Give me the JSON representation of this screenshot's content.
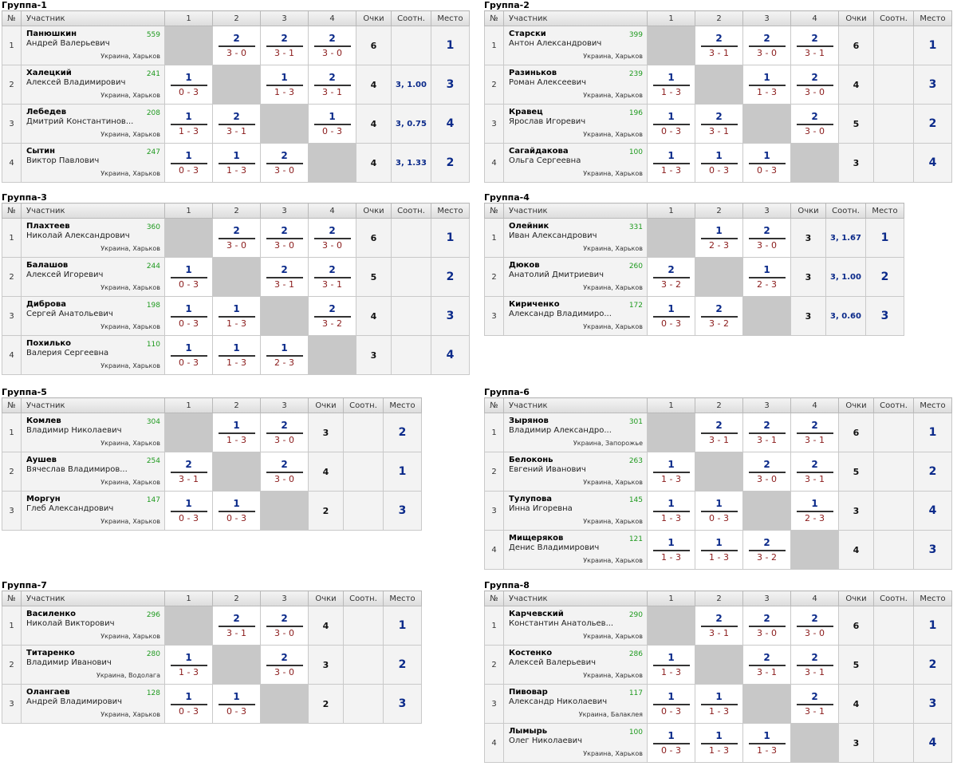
{
  "headers": {
    "num": "№",
    "name": "Участник",
    "points": "Очки",
    "ratio": "Соотн.",
    "place": "Место"
  },
  "groups": [
    {
      "title": "Группа-1",
      "cols": [
        "1",
        "2",
        "3",
        "4"
      ],
      "players": [
        {
          "num": "1",
          "surname": "Панюшкин",
          "given": "Андрей Валерьевич",
          "rating": "559",
          "location": "Украина, Харьков",
          "results": [
            null,
            {
              "mp": "2",
              "sc": "3 - 0"
            },
            {
              "mp": "2",
              "sc": "3 - 1"
            },
            {
              "mp": "2",
              "sc": "3 - 0"
            }
          ],
          "points": "6",
          "ratio": "",
          "place": "1"
        },
        {
          "num": "2",
          "surname": "Халецкий",
          "given": "Алексей Владимирович",
          "rating": "241",
          "location": "Украина, Харьков",
          "results": [
            {
              "mp": "1",
              "sc": "0 - 3"
            },
            null,
            {
              "mp": "1",
              "sc": "1 - 3"
            },
            {
              "mp": "2",
              "sc": "3 - 1"
            }
          ],
          "points": "4",
          "ratio": "3, 1.00",
          "place": "3"
        },
        {
          "num": "3",
          "surname": "Лебедев",
          "given": "Дмитрий Константинов...",
          "rating": "208",
          "location": "Украина, Харьков",
          "results": [
            {
              "mp": "1",
              "sc": "1 - 3"
            },
            {
              "mp": "2",
              "sc": "3 - 1"
            },
            null,
            {
              "mp": "1",
              "sc": "0 - 3"
            }
          ],
          "points": "4",
          "ratio": "3, 0.75",
          "place": "4"
        },
        {
          "num": "4",
          "surname": "Сытин",
          "given": "Виктор Павлович",
          "rating": "247",
          "location": "Украина, Харьков",
          "results": [
            {
              "mp": "1",
              "sc": "0 - 3"
            },
            {
              "mp": "1",
              "sc": "1 - 3"
            },
            {
              "mp": "2",
              "sc": "3 - 0"
            },
            null
          ],
          "points": "4",
          "ratio": "3, 1.33",
          "place": "2"
        }
      ]
    },
    {
      "title": "Группа-2",
      "cols": [
        "1",
        "2",
        "3",
        "4"
      ],
      "players": [
        {
          "num": "1",
          "surname": "Старски",
          "given": "Антон Александрович",
          "rating": "399",
          "location": "Украина, Харьков",
          "results": [
            null,
            {
              "mp": "2",
              "sc": "3 - 1"
            },
            {
              "mp": "2",
              "sc": "3 - 0"
            },
            {
              "mp": "2",
              "sc": "3 - 1"
            }
          ],
          "points": "6",
          "ratio": "",
          "place": "1"
        },
        {
          "num": "2",
          "surname": "Разиньков",
          "given": "Роман Алексеевич",
          "rating": "239",
          "location": "Украина, Харьков",
          "results": [
            {
              "mp": "1",
              "sc": "1 - 3"
            },
            null,
            {
              "mp": "1",
              "sc": "1 - 3"
            },
            {
              "mp": "2",
              "sc": "3 - 0"
            }
          ],
          "points": "4",
          "ratio": "",
          "place": "3"
        },
        {
          "num": "3",
          "surname": "Кравец",
          "given": "Ярослав Игоревич",
          "rating": "196",
          "location": "Украина, Харьков",
          "results": [
            {
              "mp": "1",
              "sc": "0 - 3"
            },
            {
              "mp": "2",
              "sc": "3 - 1"
            },
            null,
            {
              "mp": "2",
              "sc": "3 - 0"
            }
          ],
          "points": "5",
          "ratio": "",
          "place": "2"
        },
        {
          "num": "4",
          "surname": "Сагайдакова",
          "given": "Ольга Сергеевна",
          "rating": "100",
          "location": "Украина, Харьков",
          "results": [
            {
              "mp": "1",
              "sc": "1 - 3"
            },
            {
              "mp": "1",
              "sc": "0 - 3"
            },
            {
              "mp": "1",
              "sc": "0 - 3"
            },
            null
          ],
          "points": "3",
          "ratio": "",
          "place": "4"
        }
      ]
    },
    {
      "title": "Группа-3",
      "cols": [
        "1",
        "2",
        "3",
        "4"
      ],
      "players": [
        {
          "num": "1",
          "surname": "Плахтеев",
          "given": "Николай Александрович",
          "rating": "360",
          "location": "Украина, Харьков",
          "results": [
            null,
            {
              "mp": "2",
              "sc": "3 - 0"
            },
            {
              "mp": "2",
              "sc": "3 - 0"
            },
            {
              "mp": "2",
              "sc": "3 - 0"
            }
          ],
          "points": "6",
          "ratio": "",
          "place": "1"
        },
        {
          "num": "2",
          "surname": "Балашов",
          "given": "Алексей Игоревич",
          "rating": "244",
          "location": "Украина, Харьков",
          "results": [
            {
              "mp": "1",
              "sc": "0 - 3"
            },
            null,
            {
              "mp": "2",
              "sc": "3 - 1"
            },
            {
              "mp": "2",
              "sc": "3 - 1"
            }
          ],
          "points": "5",
          "ratio": "",
          "place": "2"
        },
        {
          "num": "3",
          "surname": "Диброва",
          "given": "Сергей Анатольевич",
          "rating": "198",
          "location": "Украина, Харьков",
          "results": [
            {
              "mp": "1",
              "sc": "0 - 3"
            },
            {
              "mp": "1",
              "sc": "1 - 3"
            },
            null,
            {
              "mp": "2",
              "sc": "3 - 2"
            }
          ],
          "points": "4",
          "ratio": "",
          "place": "3"
        },
        {
          "num": "4",
          "surname": "Похилько",
          "given": "Валерия Сергеевна",
          "rating": "110",
          "location": "Украина, Харьков",
          "results": [
            {
              "mp": "1",
              "sc": "0 - 3"
            },
            {
              "mp": "1",
              "sc": "1 - 3"
            },
            {
              "mp": "1",
              "sc": "2 - 3"
            },
            null
          ],
          "points": "3",
          "ratio": "",
          "place": "4"
        }
      ]
    },
    {
      "title": "Группа-4",
      "cols": [
        "1",
        "2",
        "3"
      ],
      "players": [
        {
          "num": "1",
          "surname": "Олейник",
          "given": "Иван Александрович",
          "rating": "331",
          "location": "Украина, Харьков",
          "results": [
            null,
            {
              "mp": "1",
              "sc": "2 - 3"
            },
            {
              "mp": "2",
              "sc": "3 - 0"
            }
          ],
          "points": "3",
          "ratio": "3, 1.67",
          "place": "1"
        },
        {
          "num": "2",
          "surname": "Дюков",
          "given": "Анатолий Дмитриевич",
          "rating": "260",
          "location": "Украина, Харьков",
          "results": [
            {
              "mp": "2",
              "sc": "3 - 2"
            },
            null,
            {
              "mp": "1",
              "sc": "2 - 3"
            }
          ],
          "points": "3",
          "ratio": "3, 1.00",
          "place": "2"
        },
        {
          "num": "3",
          "surname": "Кириченко",
          "given": "Александр Владимиро...",
          "rating": "172",
          "location": "Украина, Харьков",
          "results": [
            {
              "mp": "1",
              "sc": "0 - 3"
            },
            {
              "mp": "2",
              "sc": "3 - 2"
            },
            null
          ],
          "points": "3",
          "ratio": "3, 0.60",
          "place": "3"
        }
      ]
    },
    {
      "title": "Группа-5",
      "cols": [
        "1",
        "2",
        "3"
      ],
      "players": [
        {
          "num": "1",
          "surname": "Комлев",
          "given": "Владимир Николаевич",
          "rating": "304",
          "location": "Украина, Харьков",
          "results": [
            null,
            {
              "mp": "1",
              "sc": "1 - 3"
            },
            {
              "mp": "2",
              "sc": "3 - 0"
            }
          ],
          "points": "3",
          "ratio": "",
          "place": "2"
        },
        {
          "num": "2",
          "surname": "Аушев",
          "given": "Вячеслав Владимиров...",
          "rating": "254",
          "location": "Украина, Харьков",
          "results": [
            {
              "mp": "2",
              "sc": "3 - 1"
            },
            null,
            {
              "mp": "2",
              "sc": "3 - 0"
            }
          ],
          "points": "4",
          "ratio": "",
          "place": "1"
        },
        {
          "num": "3",
          "surname": "Моргун",
          "given": "Глеб Александрович",
          "rating": "147",
          "location": "Украина, Харьков",
          "results": [
            {
              "mp": "1",
              "sc": "0 - 3"
            },
            {
              "mp": "1",
              "sc": "0 - 3"
            },
            null
          ],
          "points": "2",
          "ratio": "",
          "place": "3"
        }
      ]
    },
    {
      "title": "Группа-6",
      "cols": [
        "1",
        "2",
        "3",
        "4"
      ],
      "players": [
        {
          "num": "1",
          "surname": "Зырянов",
          "given": "Владимир Александро...",
          "rating": "301",
          "location": "Украина, Запорожье",
          "results": [
            null,
            {
              "mp": "2",
              "sc": "3 - 1"
            },
            {
              "mp": "2",
              "sc": "3 - 1"
            },
            {
              "mp": "2",
              "sc": "3 - 1"
            }
          ],
          "points": "6",
          "ratio": "",
          "place": "1"
        },
        {
          "num": "2",
          "surname": "Белоконь",
          "given": "Евгений Иванович",
          "rating": "263",
          "location": "Украина, Харьков",
          "results": [
            {
              "mp": "1",
              "sc": "1 - 3"
            },
            null,
            {
              "mp": "2",
              "sc": "3 - 0"
            },
            {
              "mp": "2",
              "sc": "3 - 1"
            }
          ],
          "points": "5",
          "ratio": "",
          "place": "2"
        },
        {
          "num": "3",
          "surname": "Тулупова",
          "given": "Инна Игоревна",
          "rating": "145",
          "location": "Украина, Харьков",
          "results": [
            {
              "mp": "1",
              "sc": "1 - 3"
            },
            {
              "mp": "1",
              "sc": "0 - 3"
            },
            null,
            {
              "mp": "1",
              "sc": "2 - 3"
            }
          ],
          "points": "3",
          "ratio": "",
          "place": "4"
        },
        {
          "num": "4",
          "surname": "Мищеряков",
          "given": "Денис Владимирович",
          "rating": "121",
          "location": "Украина, Харьков",
          "results": [
            {
              "mp": "1",
              "sc": "1 - 3"
            },
            {
              "mp": "1",
              "sc": "1 - 3"
            },
            {
              "mp": "2",
              "sc": "3 - 2"
            },
            null
          ],
          "points": "4",
          "ratio": "",
          "place": "3"
        }
      ]
    },
    {
      "title": "Группа-7",
      "cols": [
        "1",
        "2",
        "3"
      ],
      "players": [
        {
          "num": "1",
          "surname": "Василенко",
          "given": "Николай Викторович",
          "rating": "296",
          "location": "Украина, Харьков",
          "results": [
            null,
            {
              "mp": "2",
              "sc": "3 - 1"
            },
            {
              "mp": "2",
              "sc": "3 - 0"
            }
          ],
          "points": "4",
          "ratio": "",
          "place": "1"
        },
        {
          "num": "2",
          "surname": "Титаренко",
          "given": "Владимир Иванович",
          "rating": "280",
          "location": "Украина, Водолага",
          "results": [
            {
              "mp": "1",
              "sc": "1 - 3"
            },
            null,
            {
              "mp": "2",
              "sc": "3 - 0"
            }
          ],
          "points": "3",
          "ratio": "",
          "place": "2"
        },
        {
          "num": "3",
          "surname": "Олангаев",
          "given": "Андрей Владимирович",
          "rating": "128",
          "location": "Украина, Харьков",
          "results": [
            {
              "mp": "1",
              "sc": "0 - 3"
            },
            {
              "mp": "1",
              "sc": "0 - 3"
            },
            null
          ],
          "points": "2",
          "ratio": "",
          "place": "3"
        }
      ]
    },
    {
      "title": "Группа-8",
      "cols": [
        "1",
        "2",
        "3",
        "4"
      ],
      "players": [
        {
          "num": "1",
          "surname": "Карчевский",
          "given": "Константин Анатольев...",
          "rating": "290",
          "location": "Украина, Харьков",
          "results": [
            null,
            {
              "mp": "2",
              "sc": "3 - 1"
            },
            {
              "mp": "2",
              "sc": "3 - 0"
            },
            {
              "mp": "2",
              "sc": "3 - 0"
            }
          ],
          "points": "6",
          "ratio": "",
          "place": "1"
        },
        {
          "num": "2",
          "surname": "Костенко",
          "given": "Алексей Валерьевич",
          "rating": "286",
          "location": "Украина, Харьков",
          "results": [
            {
              "mp": "1",
              "sc": "1 - 3"
            },
            null,
            {
              "mp": "2",
              "sc": "3 - 1"
            },
            {
              "mp": "2",
              "sc": "3 - 1"
            }
          ],
          "points": "5",
          "ratio": "",
          "place": "2"
        },
        {
          "num": "3",
          "surname": "Пивовар",
          "given": "Александр Николаевич",
          "rating": "117",
          "location": "Украина, Балаклея",
          "results": [
            {
              "mp": "1",
              "sc": "0 - 3"
            },
            {
              "mp": "1",
              "sc": "1 - 3"
            },
            null,
            {
              "mp": "2",
              "sc": "3 - 1"
            }
          ],
          "points": "4",
          "ratio": "",
          "place": "3"
        },
        {
          "num": "4",
          "surname": "Лымырь",
          "given": "Олег Николаевич",
          "rating": "100",
          "location": "Украина, Харьков",
          "results": [
            {
              "mp": "1",
              "sc": "0 - 3"
            },
            {
              "mp": "1",
              "sc": "1 - 3"
            },
            {
              "mp": "1",
              "sc": "1 - 3"
            },
            null
          ],
          "points": "3",
          "ratio": "",
          "place": "4"
        }
      ]
    }
  ]
}
